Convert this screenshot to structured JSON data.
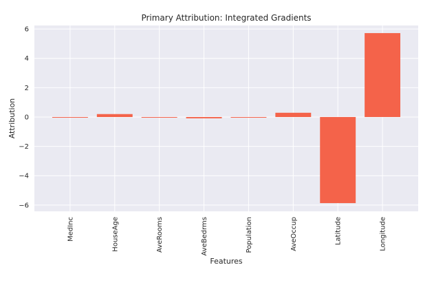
{
  "chart_data": {
    "type": "bar",
    "title": "Primary Attribution: Integrated Gradients",
    "xlabel": "Features",
    "ylabel": "Attribution",
    "categories": [
      "MedInc",
      "HouseAge",
      "AveRooms",
      "AveBedrms",
      "Population",
      "AveOccup",
      "Latitude",
      "Longitude"
    ],
    "values": [
      -0.03,
      0.2,
      -0.03,
      -0.09,
      -0.03,
      0.29,
      -5.87,
      5.72
    ],
    "ylim": [
      -6.43,
      6.24
    ],
    "xlim": [
      -0.8,
      7.8
    ],
    "yticks": [
      -6,
      -4,
      -2,
      0,
      2,
      4,
      6
    ],
    "ytick_labels": [
      "−6",
      "−4",
      "−2",
      "0",
      "2",
      "4",
      "6"
    ],
    "grid": true,
    "bar_color": "#f4634a",
    "background_color": "#eaeaf2"
  }
}
